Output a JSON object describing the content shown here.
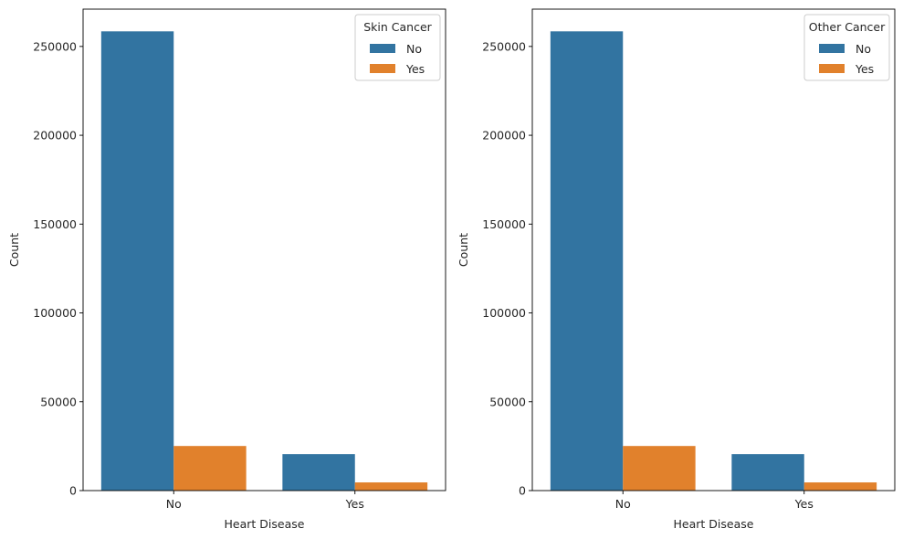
{
  "chart_data": [
    {
      "type": "bar",
      "categories": [
        "No",
        "Yes"
      ],
      "xlabel": "Heart Disease",
      "ylabel": "Count",
      "ylim": [
        0,
        271000
      ],
      "yticks": [
        0,
        50000,
        100000,
        150000,
        200000,
        250000
      ],
      "legend": {
        "title": "Skin Cancer",
        "placement": "top-right"
      },
      "series": [
        {
          "name": "No",
          "color": "#3274a1",
          "values": [
            258500,
            20500
          ]
        },
        {
          "name": "Yes",
          "color": "#e1812c",
          "values": [
            25100,
            4600
          ]
        }
      ]
    },
    {
      "type": "bar",
      "categories": [
        "No",
        "Yes"
      ],
      "xlabel": "Heart Disease",
      "ylabel": "Count",
      "ylim": [
        0,
        271000
      ],
      "yticks": [
        0,
        50000,
        100000,
        150000,
        200000,
        250000
      ],
      "legend": {
        "title": "Other Cancer",
        "placement": "top-right"
      },
      "series": [
        {
          "name": "No",
          "color": "#3274a1",
          "values": [
            258500,
            20500
          ]
        },
        {
          "name": "Yes",
          "color": "#e1812c",
          "values": [
            25100,
            4600
          ]
        }
      ]
    }
  ]
}
